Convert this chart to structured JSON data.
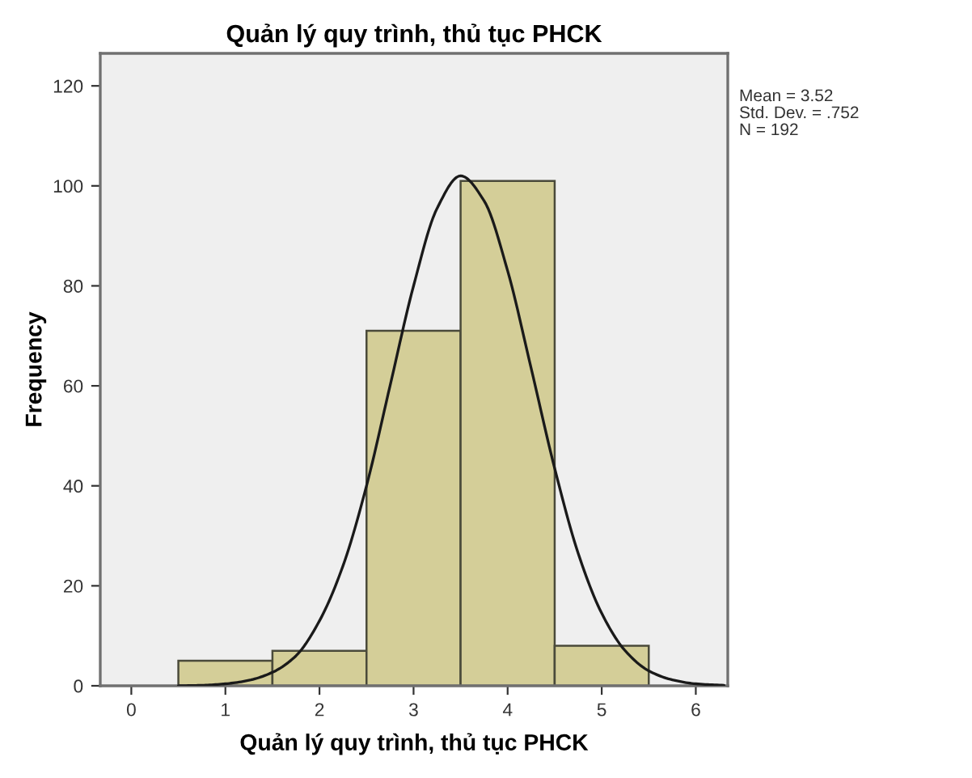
{
  "chart_data": {
    "type": "histogram",
    "title": "Quản lý quy trình, thủ tục PHCK",
    "xlabel": "Quản lý quy trình, thủ tục PHCK",
    "ylabel": "Frequency",
    "series": [
      {
        "type": "histogram",
        "bins": [
          0.5,
          1.5,
          2.5,
          3.5,
          4.5,
          5.5
        ],
        "values": [
          5,
          7,
          71,
          101,
          8
        ],
        "color": "#d4ce98"
      },
      {
        "type": "line",
        "x": [
          0.5,
          0.75,
          1.0,
          1.25,
          1.5,
          1.75,
          2.0,
          2.25,
          2.5,
          2.75,
          3.0,
          3.25,
          3.5,
          3.75,
          4.0,
          4.25,
          4.5,
          4.75,
          5.0,
          5.25,
          5.5,
          5.75,
          6.0,
          6.3
        ],
        "values": [
          0,
          0.1,
          0.4,
          1.1,
          2.7,
          6,
          13,
          24,
          40,
          60,
          80,
          95.5,
          102,
          97,
          83,
          63.5,
          43.5,
          26.5,
          14.5,
          7,
          3,
          1.2,
          0.4,
          0.1
        ],
        "color": "#1a1a1a"
      }
    ],
    "annotations": [
      "Mean = 3.52",
      "Std. Dev. = .752",
      "N = 192"
    ],
    "xlim": [
      -0.33,
      6.34
    ],
    "ylim": [
      0,
      126.5
    ],
    "xticks": [
      0,
      1,
      2,
      3,
      4,
      5,
      6
    ],
    "yticks": [
      0,
      20,
      40,
      60,
      80,
      100,
      120
    ],
    "grid": false
  }
}
